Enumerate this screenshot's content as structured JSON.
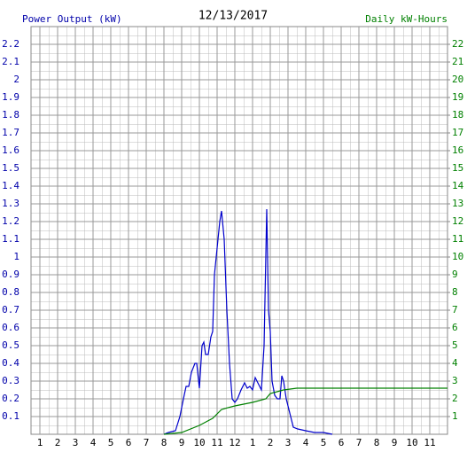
{
  "chart_data": {
    "type": "line",
    "title": "12/13/2017",
    "y_label": "Power Output (kW)",
    "y2_label": "Daily kW-Hours",
    "xlim": [
      0.5,
      24
    ],
    "xticks": [
      1,
      2,
      3,
      4,
      5,
      6,
      7,
      8,
      9,
      10,
      11,
      12,
      {
        "value": 13,
        "label": "1"
      },
      {
        "value": 14,
        "label": "2"
      },
      {
        "value": 15,
        "label": "3"
      },
      {
        "value": 16,
        "label": "4"
      },
      {
        "value": 17,
        "label": "5"
      },
      {
        "value": 18,
        "label": "6"
      },
      {
        "value": 19,
        "label": "7"
      },
      {
        "value": 20,
        "label": "8"
      },
      {
        "value": 21,
        "label": "9"
      },
      {
        "value": 22,
        "label": "10"
      },
      {
        "value": 23,
        "label": "11"
      }
    ],
    "ylim": [
      0,
      2.3
    ],
    "yticks": [
      0.1,
      0.2,
      0.3,
      0.4,
      0.5,
      0.6,
      0.7,
      0.8,
      0.9,
      1.0,
      1.1,
      1.2,
      1.3,
      1.4,
      1.5,
      1.6,
      1.7,
      1.8,
      1.9,
      2.0,
      2.1,
      2.2
    ],
    "y2lim": [
      0,
      23
    ],
    "y2ticks": [
      1,
      2,
      3,
      4,
      5,
      6,
      7,
      8,
      9,
      10,
      11,
      12,
      13,
      14,
      15,
      16,
      17,
      18,
      19,
      20,
      21,
      22
    ],
    "grid": true,
    "series": [
      {
        "name": "Power Output",
        "color": "#0000cc",
        "x": [
          8.0,
          8.25,
          8.65,
          8.9,
          9.1,
          9.25,
          9.4,
          9.55,
          9.75,
          9.85,
          10.0,
          10.15,
          10.25,
          10.35,
          10.5,
          10.65,
          10.75,
          10.85,
          11.0,
          11.15,
          11.25,
          11.4,
          11.55,
          11.7,
          11.85,
          12.0,
          12.15,
          12.35,
          12.55,
          12.7,
          12.85,
          13.0,
          13.15,
          13.35,
          13.5,
          13.65,
          13.8,
          13.9,
          14.0,
          14.1,
          14.25,
          14.4,
          14.55,
          14.65,
          14.75,
          14.9,
          15.1,
          15.3,
          15.55,
          16.0,
          16.5,
          17.0,
          17.5
        ],
        "values": [
          0.0,
          0.01,
          0.02,
          0.1,
          0.2,
          0.27,
          0.27,
          0.35,
          0.4,
          0.4,
          0.26,
          0.5,
          0.52,
          0.45,
          0.45,
          0.55,
          0.58,
          0.9,
          1.05,
          1.2,
          1.26,
          1.1,
          0.7,
          0.4,
          0.2,
          0.18,
          0.2,
          0.25,
          0.29,
          0.26,
          0.27,
          0.25,
          0.32,
          0.28,
          0.25,
          0.5,
          1.27,
          0.7,
          0.58,
          0.3,
          0.22,
          0.2,
          0.2,
          0.33,
          0.3,
          0.2,
          0.12,
          0.04,
          0.03,
          0.02,
          0.01,
          0.01,
          0.0
        ]
      },
      {
        "name": "Daily kW-Hours",
        "color": "#008000",
        "axis": "y2",
        "x": [
          8.0,
          9.0,
          10.0,
          10.75,
          11.25,
          12.0,
          13.0,
          13.75,
          14.0,
          14.75,
          15.5,
          24
        ],
        "values": [
          0,
          0.1,
          0.5,
          0.9,
          1.4,
          1.6,
          1.8,
          2.0,
          2.3,
          2.5,
          2.6,
          2.6
        ]
      }
    ]
  }
}
